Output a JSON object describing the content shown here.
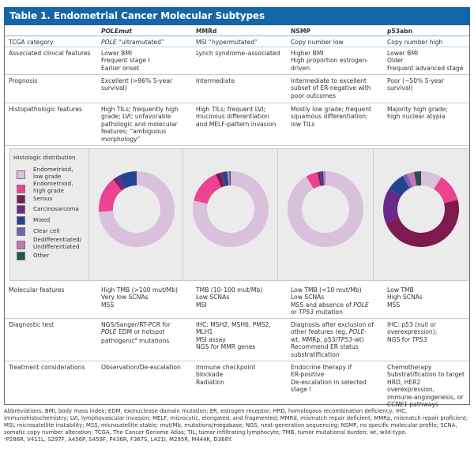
{
  "title": "Table 1. Endometrial Cancer Molecular Subtypes",
  "columns": [
    "",
    "POLEmut",
    "MMRd",
    "NSMP",
    "p53abn"
  ],
  "rows": [
    {
      "label": "TCGA category",
      "cells": [
        "POLE “ultramutated”",
        "MSI “hypermutated”",
        "Copy number low",
        "Copy number high"
      ]
    },
    {
      "label": "Associated clinical features",
      "cells": [
        "Lower BMI\nFrequent stage I\nEarlier onset",
        "Lynch syndrome–associated",
        "Higher BMI\nHigh proportion estrogen-\ndriven",
        "Lower BMI\nOlder\nFrequent advanced stage"
      ]
    },
    {
      "label": "Prognosis",
      "cells": [
        "Excellent (>96% 5-year\nsurvival)",
        "Intermediate",
        "Intermediate to excellent\nsubset of ER-negative with\npoor outcomes",
        "Poor (~50% 5-year\nsurvival)"
      ]
    },
    {
      "label": "Histopathologic features",
      "cells": [
        "High TILs; frequently high\ngrade; LVI; unfavorable\npathologic and molecular\nfeatures; “ambiguous\nmorphology”",
        "High TILs; frequent LVI;\nmucinous differentiation\nand MELF-pattern invasion",
        "Mostly low grade; frequent\nsquamous differentiation;\nlow TILs",
        "Majority high grade;\nhigh nuclear atypia"
      ]
    },
    {
      "label": "Molecular features",
      "cells": [
        "High TMB (>100 mut/Mb)\nVery low SCNAs\nMSS",
        "TMB (10–100 mut/Mb)\nLow SCNAs\nMSI",
        "Low TMB (<10 mut/Mb)\nLow SCNAs\nMSS and absence of POLE\nor TP53 mutation",
        "Low TMB\nHigh SCNAs\nMSS"
      ]
    },
    {
      "label": "Diagnostic test",
      "cells": [
        "NGS/Sanger/RT-PCR for\nPOLE EDM or hotspot\npathogenicᵃ mutations",
        "IHC: MSH2, MSH6, PMS2,\nMLH1\nMSI assay\nNGS for MMR genes",
        "Diagnosis after exclusion of\nother features (eg, POLE-\nwt, MMRp, p53/TP53-wt)\nRecommend ER status\nsubstratification",
        "IHC: p53 (null or\noverexpression);\nNGS for TP53"
      ]
    },
    {
      "label": "Treatment considerations",
      "cells": [
        "Observation/De-escalation",
        "Immune checkpoint\nblockade\nRadiation",
        "Endocrine therapy if\nER-positive\nDe-escalation in selected\nstage I",
        "Chemotherapy\nSubstratification to target\nHRD, HER2 overexpression,\nimmune-angiogenesis, or\nCCNE1 pathways"
      ]
    }
  ],
  "histologic": {
    "title": "Histologic distribution",
    "legend": [
      {
        "label": "Endometrioid,\nlow grade",
        "color": "#d9c1dc"
      },
      {
        "label": "Endometrioid,\nhigh grade",
        "color": "#ec4390"
      },
      {
        "label": "Serous",
        "color": "#7e1a4e"
      },
      {
        "label": "Carcinosarcoma",
        "color": "#6a2a8c"
      },
      {
        "label": "Mixed",
        "color": "#23458f"
      },
      {
        "label": "Clear cell",
        "color": "#7163b1"
      },
      {
        "label": "Dedifferentiated/\nUndifferentiated",
        "color": "#c676b9"
      },
      {
        "label": "Other",
        "color": "#27514b"
      }
    ],
    "distributions": [
      {
        "subtype": "POLEmut",
        "values": [
          76,
          16,
          1,
          2,
          8,
          0,
          0,
          0
        ]
      },
      {
        "subtype": "MMRd",
        "values": [
          79,
          15,
          2,
          1,
          2,
          0,
          1,
          0.5
        ]
      },
      {
        "subtype": "NSMP",
        "values": [
          92,
          5,
          1,
          0.5,
          1,
          0,
          1,
          0
        ]
      },
      {
        "subtype": "p53abn",
        "values": [
          9,
          12,
          48,
          15,
          8,
          2,
          3,
          3
        ]
      }
    ]
  },
  "footer": {
    "abbreviations": "Abbreviations: BMI, body mass index; EDM, exonuclease domain mutation; ER, estrogen receptor; HRD, homologous recombination deficiency; IHC, immunohistochemistry; LVI, lymphovascular invasion; MELF, microcytic, elongated, and fragmented; MMRd, mismatch repair deficient; MMRp, mismatch repair proficient; MSI, microsatellite instability; MSS, microsatellite stable; mut/Mb, mutations/megabase; NGS, next-generation sequencing; NSMP, no specific molecular profile; SCNA, somatic copy number alteration; TCGA, The Cancer Genome Atlas; TIL, tumor-infiltrating lymphocyte; TMB, tumor mutational burden; wt, wild-type.",
    "footnote": "ᵃP286R, V411L, S297F, A456P, S459F, P436R, F367S, L421I, M295R, M444K, D368Y."
  }
}
